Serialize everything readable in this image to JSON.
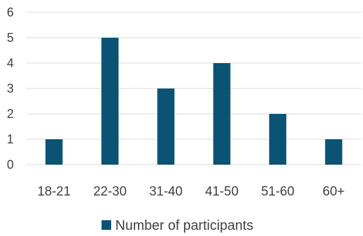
{
  "chart_data": {
    "type": "bar",
    "categories": [
      "18-21",
      "22-30",
      "31-40",
      "41-50",
      "51-60",
      "60+"
    ],
    "series": [
      {
        "name": "Number of participants",
        "values": [
          1,
          5,
          3,
          4,
          2,
          1
        ],
        "color": "#0b5374"
      }
    ],
    "ylim": [
      0,
      6
    ],
    "yticks": [
      0,
      1,
      2,
      3,
      4,
      5,
      6
    ],
    "grid": true,
    "legend": "bottom",
    "title": "",
    "xlabel": "",
    "ylabel": ""
  }
}
